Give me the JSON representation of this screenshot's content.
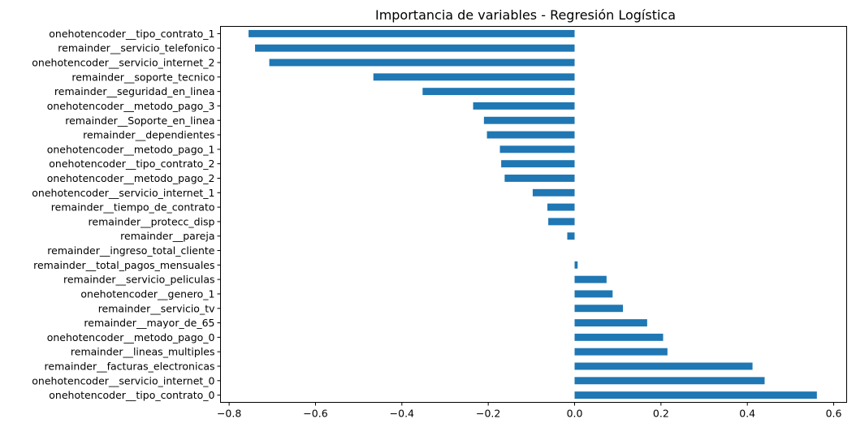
{
  "chart_data": {
    "type": "bar",
    "orientation": "horizontal",
    "title": "Importancia de variables - Regresión Logística",
    "xlabel": "",
    "ylabel": "",
    "xlim": [
      -0.82,
      0.63
    ],
    "xticks": [
      -0.8,
      -0.6,
      -0.4,
      -0.2,
      0.0,
      0.2,
      0.4,
      0.6
    ],
    "xtick_labels": [
      "−0.8",
      "−0.6",
      "−0.4",
      "−0.2",
      "0.0",
      "0.2",
      "0.4",
      "0.6"
    ],
    "grid": false,
    "legend": "none",
    "bar_color": "#1f77b4",
    "categories": [
      "onehotencoder__tipo_contrato_1",
      "remainder__servicio_telefonico",
      "onehotencoder__servicio_internet_2",
      "remainder__soporte_tecnico",
      "remainder__seguridad_en_linea",
      "onehotencoder__metodo_pago_3",
      "remainder__Soporte_en_linea",
      "remainder__dependientes",
      "onehotencoder__metodo_pago_1",
      "onehotencoder__tipo_contrato_2",
      "onehotencoder__metodo_pago_2",
      "onehotencoder__servicio_internet_1",
      "remainder__tiempo_de_contrato",
      "remainder__protecc_disp",
      "remainder__pareja",
      "remainder__ingreso_total_cliente",
      "remainder__total_pagos_mensuales",
      "remainder__servicio_peliculas",
      "onehotencoder__genero_1",
      "remainder__servicio_tv",
      "remainder__mayor_de_65",
      "onehotencoder__metodo_pago_0",
      "remainder__lineas_multiples",
      "remainder__facturas_electronicas",
      "onehotencoder__servicio_internet_0",
      "onehotencoder__tipo_contrato_0"
    ],
    "values": [
      -0.755,
      -0.74,
      -0.707,
      -0.466,
      -0.352,
      -0.235,
      -0.21,
      -0.203,
      -0.173,
      -0.17,
      -0.162,
      -0.097,
      -0.063,
      -0.061,
      -0.017,
      0.0,
      0.007,
      0.074,
      0.088,
      0.112,
      0.168,
      0.205,
      0.215,
      0.412,
      0.44,
      0.561
    ]
  }
}
